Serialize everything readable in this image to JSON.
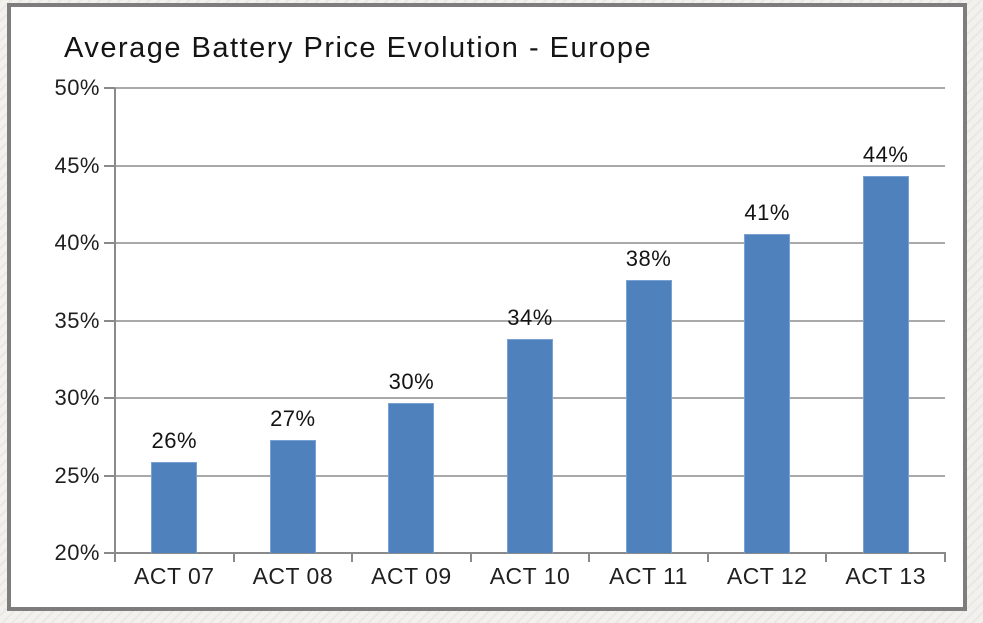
{
  "chart_data": {
    "type": "bar",
    "title": "Average Battery Price Evolution - Europe",
    "categories": [
      "ACT 07",
      "ACT 08",
      "ACT 09",
      "ACT 10",
      "ACT 11",
      "ACT 12",
      "ACT 13"
    ],
    "values": [
      25.9,
      27.3,
      29.7,
      33.8,
      37.6,
      40.6,
      44.3
    ],
    "data_labels": [
      "26%",
      "27%",
      "30%",
      "34%",
      "38%",
      "41%",
      "44%"
    ],
    "ylim": [
      20,
      50
    ],
    "ytick_step": 5,
    "ytick_labels": [
      "20%",
      "25%",
      "30%",
      "35%",
      "40%",
      "45%",
      "50%"
    ],
    "xlabel": "",
    "ylabel": "",
    "grid": true,
    "legend": false,
    "bar_color": "#4f81bd",
    "bar_border_color": "#77a2d3",
    "gridline_color": "#a9a9a9",
    "axis_color": "#8a8a8a",
    "text_color": "#1f1f1f"
  }
}
